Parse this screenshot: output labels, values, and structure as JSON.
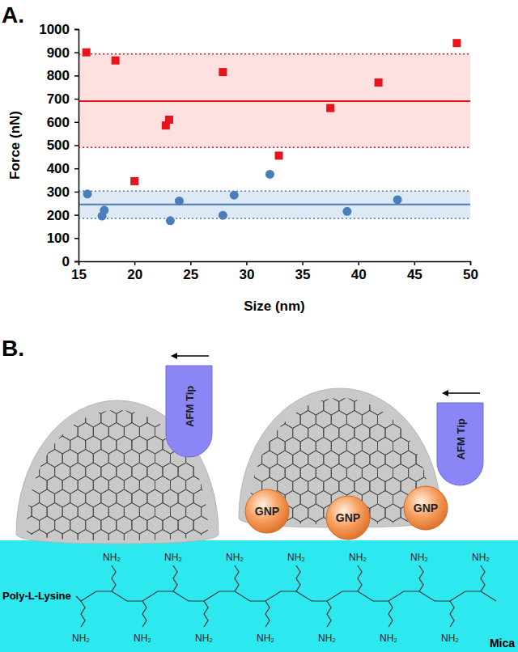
{
  "panel_label": "A.",
  "chart_data": {
    "type": "scatter",
    "x_label": "Size (nm)",
    "y_label": "Force (nN)",
    "xlim": [
      15,
      50
    ],
    "xticks": [
      15,
      20,
      25,
      30,
      35,
      40,
      45,
      50
    ],
    "ylim": [
      0,
      1000
    ],
    "yticks": [
      0,
      100,
      200,
      300,
      400,
      500,
      600,
      700,
      800,
      900,
      1000
    ],
    "grid": false,
    "series": [
      {
        "color": "#e8141c",
        "marker": "square",
        "x": [
          15.7,
          18.3,
          20.0,
          22.8,
          23.1,
          27.9,
          32.9,
          37.5,
          41.8,
          48.8
        ],
        "values": [
          900,
          865,
          345,
          585,
          610,
          815,
          455,
          660,
          770,
          940
        ],
        "mean": 690,
        "band": [
          490,
          893
        ]
      },
      {
        "color": "#4a7ebb",
        "marker": "circle",
        "x": [
          15.8,
          17.1,
          17.3,
          23.2,
          24.0,
          27.9,
          28.9,
          32.1,
          39.0,
          43.5
        ],
        "values": [
          290,
          195,
          220,
          175,
          260,
          198,
          285,
          375,
          215,
          265
        ],
        "mean": 245,
        "band": [
          185,
          302
        ]
      }
    ]
  },
  "diagram": {
    "panel_label": "B.",
    "tips": [
      "AFM Tip",
      "AFM Tip"
    ],
    "particles": [
      "GNP",
      "GNP",
      "GNP"
    ],
    "polymer": {
      "label": "Poly-L-Lysine",
      "amine_groups": [
        "NH₂",
        "NH₂",
        "NH₂",
        "NH₂",
        "NH₂",
        "NH₂",
        "NH₂",
        "NH₂",
        "NH₂",
        "NH₂",
        "NH₂",
        "NH₂",
        "NH₂",
        "NH₂"
      ]
    },
    "substrate": "Mica"
  }
}
